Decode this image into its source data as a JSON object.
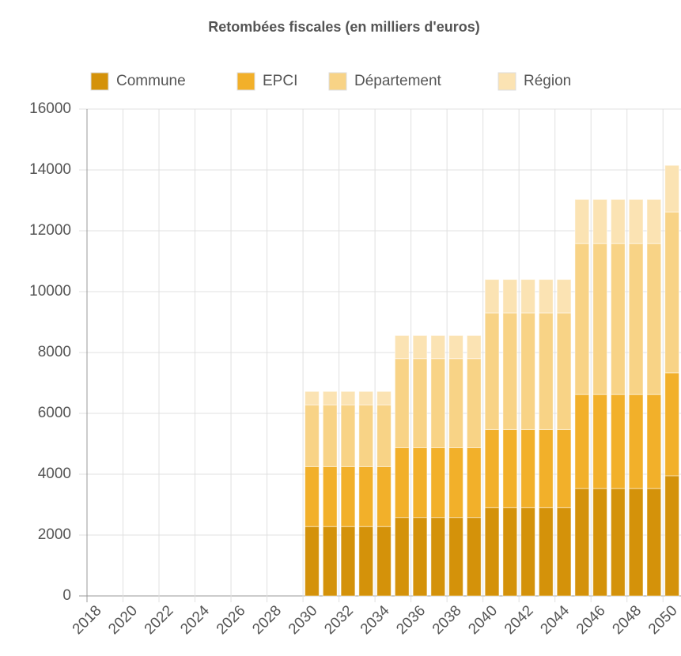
{
  "chart_data": {
    "type": "stacked_bar",
    "title": "Retombées fiscales (en milliers d'euros)",
    "categories": [
      "2018",
      null,
      "2020",
      null,
      "2022",
      null,
      "2024",
      null,
      "2026",
      null,
      "2028",
      null,
      "2030",
      null,
      "2032",
      null,
      "2034",
      null,
      "2036",
      null,
      "2038",
      null,
      "2040",
      null,
      "2042",
      null,
      "2044",
      null,
      "2046",
      null,
      "2048",
      null,
      "2050"
    ],
    "series": [
      {
        "name": "Commune",
        "color": "#d4920a",
        "values": [
          0,
          0,
          0,
          0,
          0,
          0,
          0,
          0,
          0,
          0,
          0,
          0,
          2280,
          2280,
          2280,
          2280,
          2280,
          2580,
          2580,
          2580,
          2580,
          2580,
          2900,
          2900,
          2900,
          2900,
          2900,
          3530,
          3530,
          3530,
          3530,
          3530,
          3950
        ]
      },
      {
        "name": "EPCI",
        "color": "#f2b02a",
        "values": [
          0,
          0,
          0,
          0,
          0,
          0,
          0,
          0,
          0,
          0,
          0,
          0,
          1970,
          1970,
          1970,
          1970,
          1970,
          2290,
          2290,
          2290,
          2290,
          2290,
          2570,
          2570,
          2570,
          2570,
          2570,
          3090,
          3090,
          3090,
          3090,
          3090,
          3380
        ]
      },
      {
        "name": "Département",
        "color": "#f8d386",
        "values": [
          0,
          0,
          0,
          0,
          0,
          0,
          0,
          0,
          0,
          0,
          0,
          0,
          2030,
          2030,
          2030,
          2030,
          2030,
          2930,
          2930,
          2930,
          2930,
          2930,
          3830,
          3830,
          3830,
          3830,
          3830,
          4960,
          4960,
          4960,
          4960,
          4960,
          5290
        ]
      },
      {
        "name": "Région",
        "color": "#fbe3b3",
        "values": [
          0,
          0,
          0,
          0,
          0,
          0,
          0,
          0,
          0,
          0,
          0,
          0,
          440,
          440,
          440,
          440,
          440,
          760,
          760,
          760,
          760,
          760,
          1100,
          1100,
          1100,
          1100,
          1100,
          1450,
          1450,
          1450,
          1450,
          1450,
          1530
        ]
      }
    ],
    "ylim": [
      0,
      16000
    ],
    "yticks": [
      0,
      2000,
      4000,
      6000,
      8000,
      10000,
      12000,
      14000,
      16000
    ],
    "grid": true,
    "legend": "top"
  }
}
